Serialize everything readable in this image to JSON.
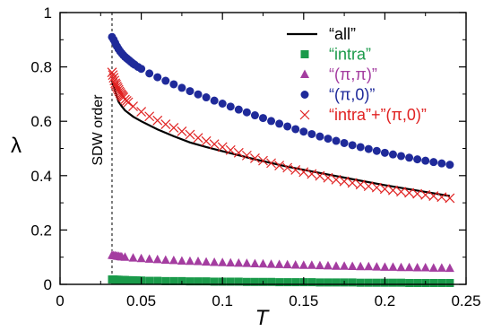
{
  "chart_data": {
    "type": "scatter",
    "xlabel": "T",
    "ylabel": "λ",
    "xlim": [
      0,
      0.25
    ],
    "ylim": [
      0,
      1
    ],
    "xticks": [
      "0",
      "0.05",
      "0.1",
      "0.15",
      "0.2",
      "0.25"
    ],
    "yticks": [
      "0",
      "0.2",
      "0.4",
      "0.6",
      "0.8",
      "1"
    ],
    "grid": false,
    "legend_position": "top-right",
    "annotation": {
      "text": "SDW order",
      "x": 0.032
    },
    "colors": {
      "all": "#000000",
      "intra": "#1a9a4a",
      "pipi": "#a43da0",
      "pi0": "#1f2a9a",
      "sum": "#e02222"
    },
    "series": [
      {
        "name": "“all”",
        "marker": "line",
        "x": [
          0.032,
          0.033,
          0.034,
          0.035,
          0.036,
          0.038,
          0.04,
          0.045,
          0.05,
          0.06,
          0.07,
          0.08,
          0.09,
          0.1,
          0.12,
          0.14,
          0.16,
          0.18,
          0.2,
          0.22,
          0.24
        ],
        "y": [
          0.75,
          0.73,
          0.71,
          0.69,
          0.672,
          0.655,
          0.64,
          0.617,
          0.6,
          0.57,
          0.545,
          0.522,
          0.505,
          0.49,
          0.46,
          0.433,
          0.41,
          0.387,
          0.365,
          0.345,
          0.325
        ]
      },
      {
        "name": "“intra”",
        "marker": "square",
        "x": [
          0.032,
          0.033,
          0.034,
          0.035,
          0.036,
          0.037,
          0.038,
          0.039,
          0.04,
          0.041,
          0.042,
          0.043,
          0.044,
          0.045,
          0.046,
          0.047,
          0.048,
          0.05,
          0.055,
          0.06,
          0.065,
          0.07,
          0.075,
          0.08,
          0.085,
          0.09,
          0.095,
          0.1,
          0.105,
          0.11,
          0.115,
          0.12,
          0.125,
          0.13,
          0.135,
          0.14,
          0.145,
          0.15,
          0.155,
          0.16,
          0.165,
          0.17,
          0.175,
          0.18,
          0.185,
          0.19,
          0.195,
          0.2,
          0.205,
          0.21,
          0.215,
          0.22,
          0.225,
          0.23,
          0.235,
          0.24
        ],
        "y": [
          0.018,
          0.018,
          0.017,
          0.017,
          0.017,
          0.016,
          0.016,
          0.016,
          0.016,
          0.015,
          0.015,
          0.015,
          0.015,
          0.015,
          0.014,
          0.014,
          0.014,
          0.014,
          0.013,
          0.013,
          0.012,
          0.012,
          0.012,
          0.011,
          0.011,
          0.011,
          0.01,
          0.01,
          0.01,
          0.01,
          0.009,
          0.009,
          0.009,
          0.009,
          0.008,
          0.008,
          0.008,
          0.008,
          0.008,
          0.007,
          0.007,
          0.007,
          0.007,
          0.007,
          0.006,
          0.006,
          0.006,
          0.006,
          0.006,
          0.006,
          0.005,
          0.005,
          0.005,
          0.005,
          0.005,
          0.005
        ]
      },
      {
        "name": "“(π,π)”",
        "marker": "triangle",
        "x": [
          0.032,
          0.033,
          0.034,
          0.035,
          0.036,
          0.037,
          0.038,
          0.04,
          0.045,
          0.05,
          0.055,
          0.06,
          0.065,
          0.07,
          0.075,
          0.08,
          0.085,
          0.09,
          0.095,
          0.1,
          0.105,
          0.11,
          0.115,
          0.12,
          0.125,
          0.13,
          0.135,
          0.14,
          0.145,
          0.15,
          0.155,
          0.16,
          0.165,
          0.17,
          0.175,
          0.18,
          0.185,
          0.19,
          0.195,
          0.2,
          0.205,
          0.21,
          0.215,
          0.22,
          0.225,
          0.23,
          0.235,
          0.24
        ],
        "y": [
          0.107,
          0.106,
          0.105,
          0.104,
          0.103,
          0.102,
          0.101,
          0.1,
          0.097,
          0.095,
          0.093,
          0.091,
          0.089,
          0.088,
          0.086,
          0.085,
          0.084,
          0.082,
          0.081,
          0.08,
          0.079,
          0.078,
          0.077,
          0.076,
          0.075,
          0.074,
          0.073,
          0.072,
          0.071,
          0.07,
          0.07,
          0.069,
          0.068,
          0.067,
          0.067,
          0.066,
          0.065,
          0.065,
          0.064,
          0.063,
          0.063,
          0.062,
          0.062,
          0.061,
          0.061,
          0.06,
          0.06,
          0.059
        ]
      },
      {
        "name": "“(π,0)”",
        "marker": "circle",
        "x": [
          0.032,
          0.033,
          0.034,
          0.035,
          0.036,
          0.037,
          0.038,
          0.039,
          0.04,
          0.041,
          0.042,
          0.043,
          0.044,
          0.045,
          0.046,
          0.048,
          0.05,
          0.055,
          0.06,
          0.065,
          0.07,
          0.075,
          0.08,
          0.085,
          0.09,
          0.095,
          0.1,
          0.105,
          0.11,
          0.115,
          0.12,
          0.125,
          0.13,
          0.135,
          0.14,
          0.145,
          0.15,
          0.155,
          0.16,
          0.165,
          0.17,
          0.175,
          0.18,
          0.185,
          0.19,
          0.195,
          0.2,
          0.205,
          0.21,
          0.215,
          0.22,
          0.225,
          0.23,
          0.235,
          0.24
        ],
        "y": [
          0.91,
          0.9,
          0.888,
          0.876,
          0.866,
          0.857,
          0.85,
          0.843,
          0.837,
          0.832,
          0.827,
          0.822,
          0.817,
          0.812,
          0.808,
          0.8,
          0.793,
          0.776,
          0.762,
          0.749,
          0.736,
          0.723,
          0.711,
          0.699,
          0.688,
          0.676,
          0.665,
          0.654,
          0.643,
          0.633,
          0.622,
          0.612,
          0.601,
          0.591,
          0.581,
          0.571,
          0.562,
          0.553,
          0.544,
          0.536,
          0.528,
          0.52,
          0.512,
          0.505,
          0.498,
          0.491,
          0.484,
          0.478,
          0.472,
          0.466,
          0.46,
          0.455,
          0.45,
          0.445,
          0.44
        ]
      },
      {
        "name": "“intra”+”(π,0)”",
        "marker": "x",
        "x": [
          0.032,
          0.0325,
          0.033,
          0.0335,
          0.034,
          0.0345,
          0.035,
          0.0355,
          0.036,
          0.0365,
          0.037,
          0.0375,
          0.038,
          0.0385,
          0.039,
          0.04,
          0.041,
          0.042,
          0.045,
          0.05,
          0.055,
          0.06,
          0.065,
          0.07,
          0.075,
          0.08,
          0.085,
          0.09,
          0.095,
          0.1,
          0.105,
          0.11,
          0.115,
          0.12,
          0.125,
          0.13,
          0.135,
          0.14,
          0.145,
          0.15,
          0.155,
          0.16,
          0.165,
          0.17,
          0.175,
          0.18,
          0.185,
          0.19,
          0.195,
          0.2,
          0.205,
          0.21,
          0.215,
          0.22,
          0.225,
          0.23,
          0.235,
          0.24
        ],
        "y": [
          0.78,
          0.77,
          0.76,
          0.75,
          0.74,
          0.735,
          0.728,
          0.722,
          0.716,
          0.71,
          0.705,
          0.7,
          0.696,
          0.692,
          0.688,
          0.68,
          0.675,
          0.67,
          0.655,
          0.635,
          0.618,
          0.603,
          0.589,
          0.576,
          0.563,
          0.551,
          0.539,
          0.527,
          0.516,
          0.505,
          0.494,
          0.484,
          0.474,
          0.464,
          0.455,
          0.446,
          0.437,
          0.429,
          0.421,
          0.413,
          0.406,
          0.399,
          0.392,
          0.385,
          0.379,
          0.373,
          0.367,
          0.361,
          0.356,
          0.351,
          0.346,
          0.341,
          0.337,
          0.333,
          0.329,
          0.325,
          0.321,
          0.317
        ]
      }
    ]
  }
}
